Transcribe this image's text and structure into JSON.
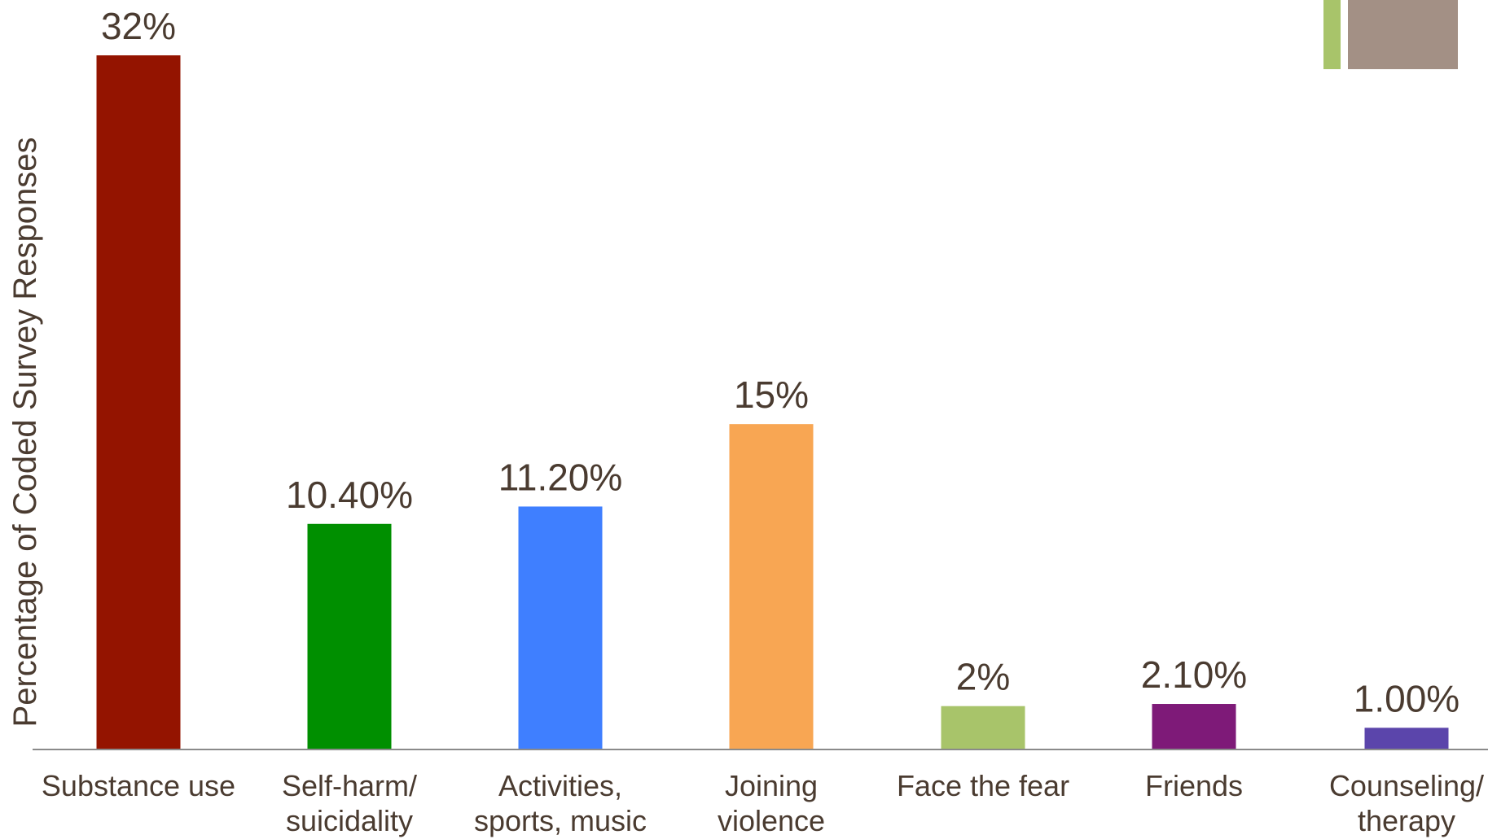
{
  "colors": {
    "text": "#4a3b30",
    "axis": "#8a8a8a",
    "deco_green": "#a8c46a",
    "deco_taupe": "#a39085"
  },
  "chart_data": {
    "type": "bar",
    "ylabel": "Percentage of Coded Survey Responses",
    "xlabel": "",
    "title": "",
    "ylim": [
      0,
      32
    ],
    "grid": false,
    "legend": "none",
    "categories": [
      [
        "Substance use"
      ],
      [
        "Self-harm/",
        "suicidality"
      ],
      [
        "Activities,",
        "sports, music"
      ],
      [
        "Joining",
        "violence"
      ],
      [
        "Face the fear"
      ],
      [
        "Friends"
      ],
      [
        "Counseling/",
        "therapy"
      ]
    ],
    "values": [
      32,
      10.4,
      11.2,
      15,
      2,
      2.1,
      1.0
    ],
    "data_labels": [
      "32%",
      "10.40%",
      "11.20%",
      "15%",
      "2%",
      "2.10%",
      "1.00%"
    ],
    "bar_colors": [
      "#941400",
      "#008f00",
      "#3f7fff",
      "#f8a653",
      "#a8c46a",
      "#7e1a78",
      "#5b45ab"
    ]
  }
}
